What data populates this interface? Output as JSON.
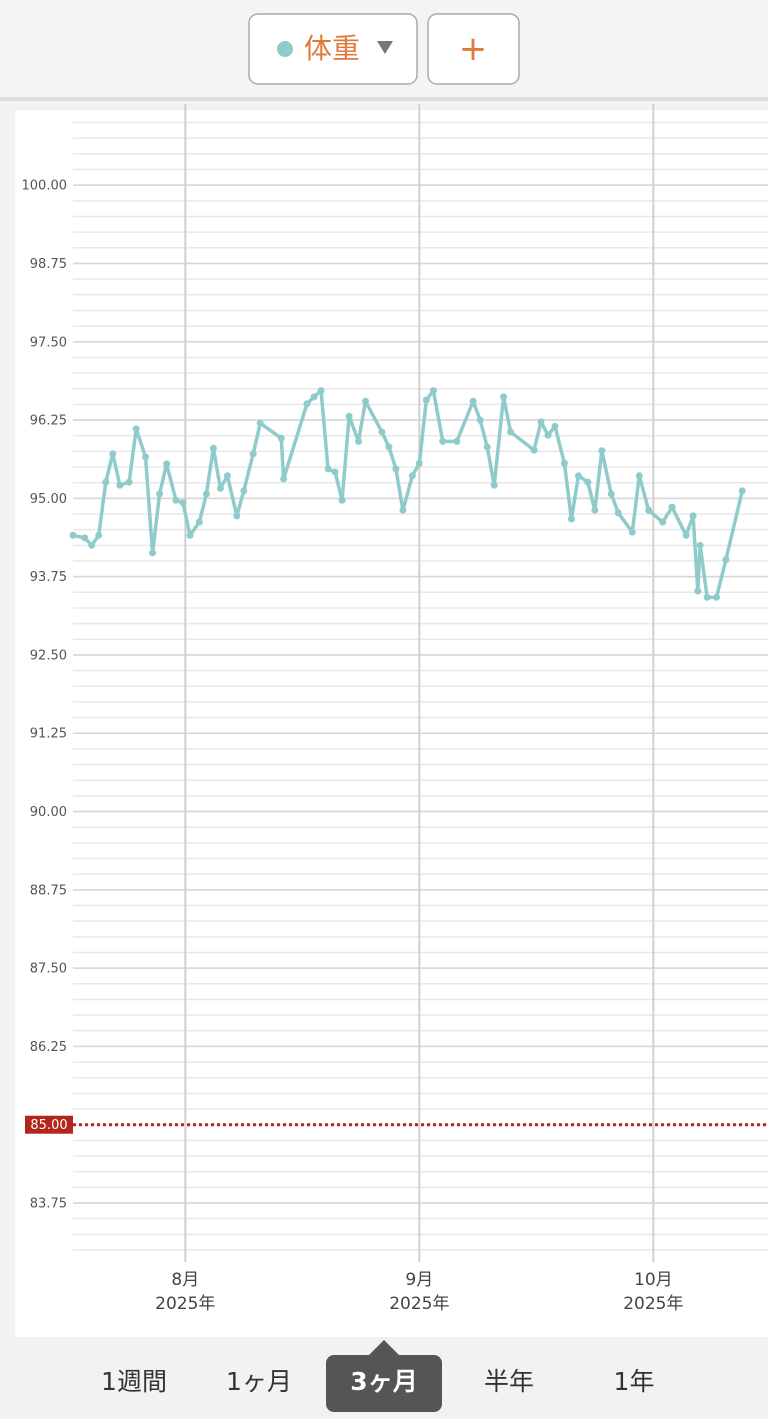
{
  "header": {
    "add_button": "+"
  },
  "range_tabs": {
    "options": [
      "1週間",
      "1ヶ月",
      "3ヶ月",
      "半年",
      "1年"
    ],
    "selected": 2
  },
  "chart_data": {
    "type": "line",
    "series": [
      {
        "name": "体重",
        "color": "#8fcbcb",
        "x": [
          7.52,
          7.57,
          7.6,
          7.63,
          7.66,
          7.69,
          7.72,
          7.76,
          7.79,
          7.83,
          7.86,
          7.89,
          7.92,
          7.96,
          7.99,
          8.02,
          8.06,
          8.09,
          8.12,
          8.15,
          8.18,
          8.22,
          8.25,
          8.29,
          8.32,
          8.41,
          8.42,
          8.52,
          8.55,
          8.58,
          8.61,
          8.64,
          8.67,
          8.7,
          8.74,
          8.77,
          8.84,
          8.87,
          8.9,
          8.93,
          8.97,
          9.0,
          9.03,
          9.06,
          9.1,
          9.16,
          9.23,
          9.26,
          9.29,
          9.32,
          9.36,
          9.39,
          9.49,
          9.52,
          9.55,
          9.58,
          9.62,
          9.65,
          9.68,
          9.72,
          9.75,
          9.78,
          9.82,
          9.85,
          9.91,
          9.94,
          9.98,
          10.04,
          10.08,
          10.14,
          10.17,
          10.19,
          10.2,
          10.23,
          10.27,
          10.31,
          10.38
        ],
        "values": [
          94.41,
          94.37,
          94.25,
          94.41,
          95.26,
          95.71,
          95.21,
          95.26,
          96.11,
          95.66,
          94.13,
          95.07,
          95.55,
          94.97,
          94.93,
          94.41,
          94.62,
          95.07,
          95.8,
          95.16,
          95.36,
          94.72,
          95.12,
          95.71,
          96.2,
          95.96,
          95.31,
          96.51,
          96.62,
          96.72,
          95.47,
          95.42,
          94.97,
          96.31,
          95.91,
          96.55,
          96.06,
          95.82,
          95.47,
          94.81,
          95.36,
          95.56,
          96.57,
          96.72,
          95.91,
          95.91,
          96.55,
          96.25,
          95.82,
          95.21,
          96.62,
          96.06,
          95.77,
          96.22,
          96.01,
          96.15,
          95.56,
          94.67,
          95.36,
          95.26,
          94.81,
          95.76,
          95.07,
          94.77,
          94.46,
          95.36,
          94.81,
          94.62,
          94.86,
          94.41,
          94.72,
          93.52,
          94.25,
          93.42,
          93.42,
          94.02,
          95.12
        ]
      }
    ],
    "xlim": [
      7.52,
      10.49
    ],
    "xticks": [
      {
        "value": 8,
        "label": "8月\n2025年"
      },
      {
        "value": 9,
        "label": "9月\n2025年"
      },
      {
        "value": 10,
        "label": "10月\n2025年"
      }
    ],
    "ylim": [
      83,
      101.2
    ],
    "yticks": [
      {
        "value": 83.75,
        "label": "83.75"
      },
      {
        "value": 86.25,
        "label": "86.25"
      },
      {
        "value": 87.5,
        "label": "87.50"
      },
      {
        "value": 88.75,
        "label": "88.75"
      },
      {
        "value": 90,
        "label": "90.00"
      },
      {
        "value": 91.25,
        "label": "91.25"
      },
      {
        "value": 92.5,
        "label": "92.50"
      },
      {
        "value": 93.75,
        "label": "93.75"
      },
      {
        "value": 95,
        "label": "95.00"
      },
      {
        "value": 96.25,
        "label": "96.25"
      },
      {
        "value": 97.5,
        "label": "97.50"
      },
      {
        "value": 98.75,
        "label": "98.75"
      },
      {
        "value": 100,
        "label": "100.00"
      }
    ],
    "minor_grid": 0.25,
    "grid": true,
    "target": {
      "value": 85,
      "label": "85.00",
      "color": "#b3261e"
    }
  }
}
